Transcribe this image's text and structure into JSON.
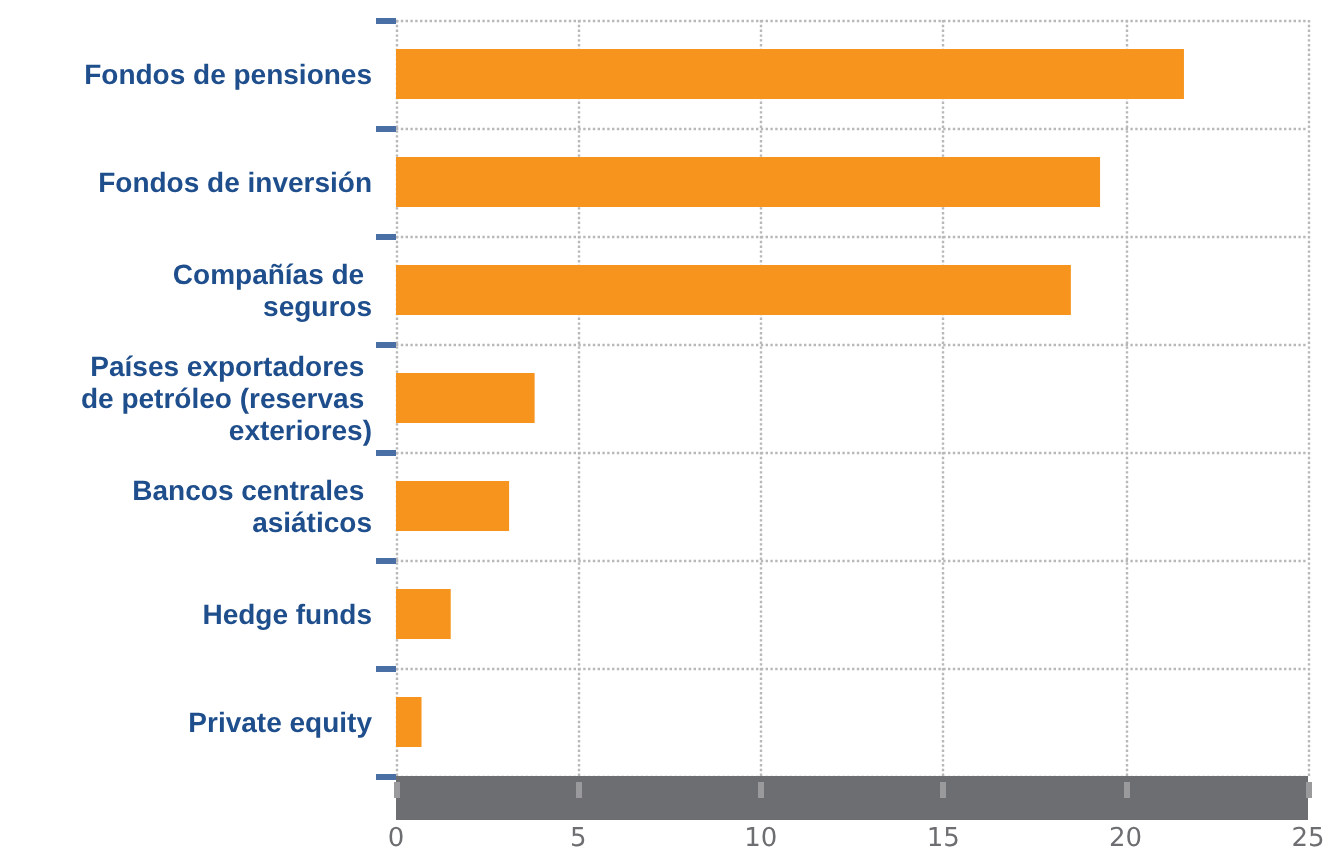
{
  "chart_data": {
    "type": "bar",
    "orientation": "horizontal",
    "categories": [
      "Fondos de pensiones",
      "Fondos de inversión",
      "Compañías de seguros",
      "Países exportadores de petróleo (reservas exteriores)",
      "Bancos centrales asiáticos",
      "Hedge funds",
      "Private equity"
    ],
    "values": [
      21.6,
      19.3,
      18.5,
      3.8,
      3.1,
      1.5,
      0.7
    ],
    "color": "#f7941d",
    "xlim": [
      0,
      25
    ],
    "xticks": [
      0,
      5,
      10,
      15,
      20,
      25
    ],
    "grid": true
  }
}
